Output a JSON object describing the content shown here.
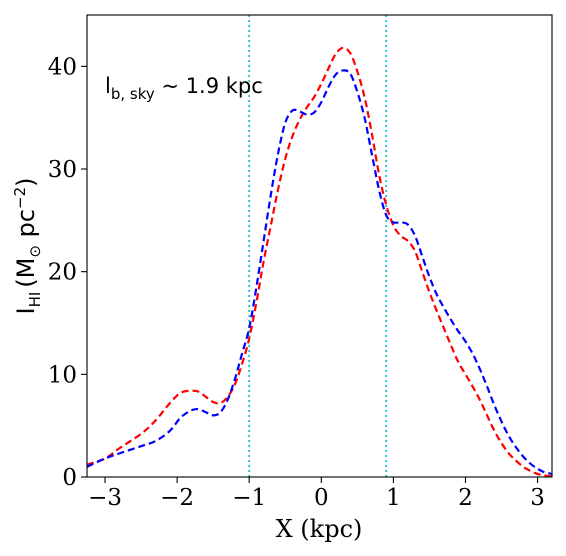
{
  "chart_data": {
    "type": "line",
    "xlabel": "X (kpc)",
    "ylabel": {
      "main": "I",
      "sub": "HI",
      "unit_prefix": "(M",
      "sun_symbol": "⊙",
      "unit_mid": " pc",
      "unit_sup": "−2",
      "unit_suffix": ")"
    },
    "annotation": {
      "main": "l",
      "sub": "b, sky",
      "rest": " ~ 1.9 kpc"
    },
    "xlim": [
      -3.25,
      3.2
    ],
    "ylim": [
      0,
      45
    ],
    "xticks": [
      -3,
      -2,
      -1,
      0,
      1,
      2,
      3
    ],
    "xtick_labels": [
      "−3",
      "−2",
      "−1",
      "0",
      "1",
      "2",
      "3"
    ],
    "yticks": [
      0,
      10,
      20,
      30,
      40
    ],
    "ytick_labels": [
      "0",
      "10",
      "20",
      "30",
      "40"
    ],
    "vlines": {
      "x": [
        -1.0,
        0.9
      ],
      "color": "#17becf",
      "style": "dotted"
    },
    "series": [
      {
        "color": "#ff0000",
        "style": "dashed",
        "x": [
          -3.25,
          -3.0,
          -2.8,
          -2.5,
          -2.3,
          -2.1,
          -1.95,
          -1.8,
          -1.7,
          -1.6,
          -1.5,
          -1.4,
          -1.3,
          -1.2,
          -1.1,
          -1.0,
          -0.9,
          -0.8,
          -0.7,
          -0.6,
          -0.5,
          -0.4,
          -0.3,
          -0.2,
          -0.1,
          0.0,
          0.1,
          0.2,
          0.3,
          0.4,
          0.5,
          0.6,
          0.7,
          0.8,
          0.9,
          1.0,
          1.1,
          1.2,
          1.3,
          1.4,
          1.5,
          1.6,
          1.7,
          1.8,
          1.9,
          2.0,
          2.1,
          2.2,
          2.3,
          2.4,
          2.5,
          2.6,
          2.7,
          2.8,
          2.9,
          3.0,
          3.1,
          3.2
        ],
        "y": [
          1.2,
          1.8,
          2.8,
          4.2,
          5.5,
          7.2,
          8.2,
          8.4,
          8.3,
          7.8,
          7.3,
          7.2,
          7.8,
          9.0,
          11.0,
          13.5,
          17.0,
          21.0,
          24.5,
          28.0,
          31.0,
          33.2,
          34.8,
          36.0,
          37.0,
          38.3,
          39.8,
          41.2,
          41.8,
          41.3,
          39.5,
          37.0,
          33.5,
          29.5,
          26.5,
          24.5,
          23.5,
          23.0,
          22.0,
          20.0,
          18.0,
          16.2,
          14.5,
          12.8,
          11.2,
          10.0,
          8.8,
          7.5,
          6.0,
          4.5,
          3.3,
          2.3,
          1.6,
          1.0,
          0.6,
          0.3,
          0.15,
          0.05
        ]
      },
      {
        "color": "#0000ff",
        "style": "dashed",
        "x": [
          -3.25,
          -3.0,
          -2.8,
          -2.5,
          -2.3,
          -2.1,
          -1.95,
          -1.8,
          -1.7,
          -1.6,
          -1.5,
          -1.4,
          -1.3,
          -1.2,
          -1.1,
          -1.0,
          -0.9,
          -0.8,
          -0.7,
          -0.6,
          -0.5,
          -0.4,
          -0.3,
          -0.2,
          -0.1,
          0.0,
          0.1,
          0.2,
          0.3,
          0.4,
          0.5,
          0.6,
          0.7,
          0.8,
          0.9,
          1.0,
          1.1,
          1.2,
          1.3,
          1.4,
          1.5,
          1.6,
          1.7,
          1.8,
          1.9,
          2.0,
          2.1,
          2.2,
          2.3,
          2.4,
          2.5,
          2.6,
          2.7,
          2.8,
          2.9,
          3.0,
          3.1,
          3.2
        ],
        "y": [
          1.0,
          1.8,
          2.3,
          3.0,
          3.5,
          4.5,
          5.8,
          6.5,
          6.6,
          6.3,
          6.0,
          6.3,
          7.5,
          9.5,
          12.0,
          14.5,
          18.5,
          23.0,
          27.5,
          31.5,
          34.5,
          35.7,
          35.6,
          35.3,
          35.5,
          36.5,
          38.0,
          39.2,
          39.6,
          39.3,
          37.5,
          35.0,
          31.5,
          28.0,
          25.5,
          24.8,
          24.8,
          24.6,
          23.5,
          21.5,
          19.5,
          17.8,
          16.5,
          15.3,
          14.2,
          13.2,
          12.0,
          10.5,
          8.8,
          7.0,
          5.4,
          4.0,
          2.9,
          2.0,
          1.3,
          0.8,
          0.45,
          0.3
        ]
      }
    ]
  }
}
